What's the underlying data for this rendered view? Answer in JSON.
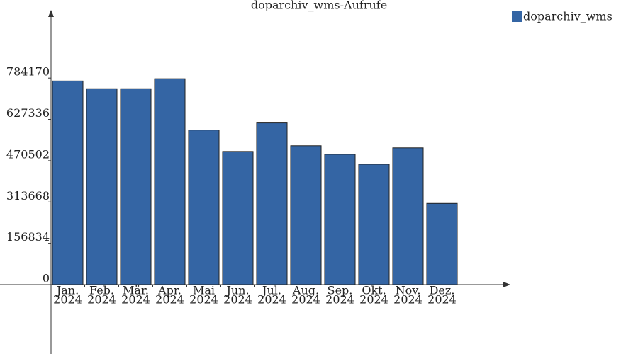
{
  "chart_data": {
    "type": "bar",
    "title": "doparchiv_wms-Aufrufe",
    "categories": [
      [
        "Jan.",
        "2024"
      ],
      [
        "Feb.",
        "2024"
      ],
      [
        "Mär.",
        "2024"
      ],
      [
        "Apr.",
        "2024"
      ],
      [
        "Mai",
        "2024"
      ],
      [
        "Jun.",
        "2024"
      ],
      [
        "Jul.",
        "2024"
      ],
      [
        "Aug.",
        "2024"
      ],
      [
        "Sep.",
        "2024"
      ],
      [
        "Okt.",
        "2024"
      ],
      [
        "Nov.",
        "2024"
      ],
      [
        "Dez.",
        "2024"
      ]
    ],
    "series": [
      {
        "name": "doparchiv_wms",
        "color": "#3465a4",
        "values": [
          773000,
          743600,
          743600,
          781500,
          586800,
          505600,
          613800,
          527300,
          494800,
          457000,
          519200,
          308300
        ]
      }
    ],
    "ylim": [
      0,
      1040000
    ],
    "yticks": [
      0,
      156834,
      313668,
      470502,
      627336,
      784170
    ]
  }
}
